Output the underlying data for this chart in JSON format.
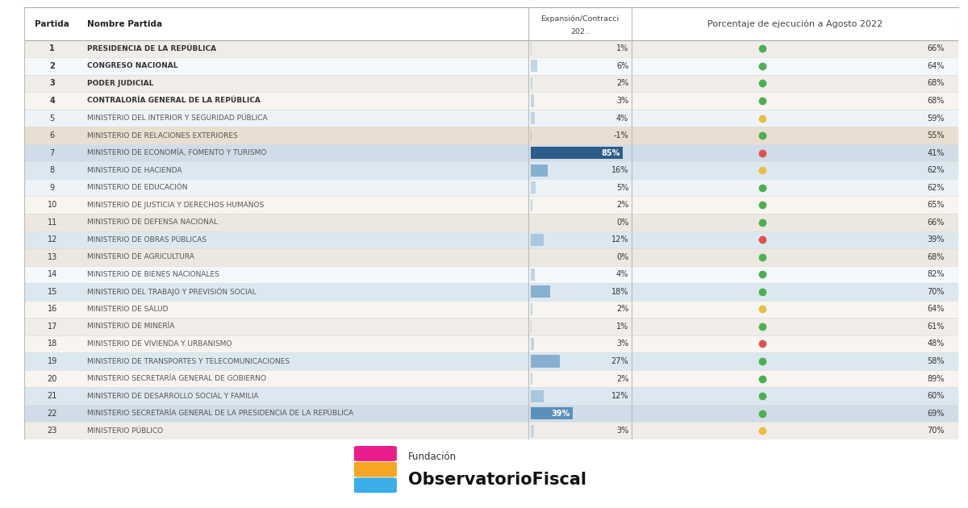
{
  "rows": [
    {
      "id": 1,
      "name": "PRESIDENCIA DE LA REPÚBLICA",
      "expansion": 1,
      "exec_pct": 66,
      "dot_color": "green"
    },
    {
      "id": 2,
      "name": "CONGRESO NACIONAL",
      "expansion": 6,
      "exec_pct": 64,
      "dot_color": "green"
    },
    {
      "id": 3,
      "name": "PODER JUDICIAL",
      "expansion": 2,
      "exec_pct": 68,
      "dot_color": "green"
    },
    {
      "id": 4,
      "name": "CONTRALORÍA GENERAL DE LA REPÚBLICA",
      "expansion": 3,
      "exec_pct": 68,
      "dot_color": "green"
    },
    {
      "id": 5,
      "name": "MINISTERIO DEL INTERIOR Y SEGURIDAD PÚBLICA",
      "expansion": 4,
      "exec_pct": 59,
      "dot_color": "yellow"
    },
    {
      "id": 6,
      "name": "MINISTERIO DE RELACIONES EXTERIORES",
      "expansion": -1,
      "exec_pct": 55,
      "dot_color": "green"
    },
    {
      "id": 7,
      "name": "MINISTERIO DE ECONOMÍA, FOMENTO Y TURISMO",
      "expansion": 85,
      "exec_pct": 41,
      "dot_color": "red"
    },
    {
      "id": 8,
      "name": "MINISTERIO DE HACIENDA",
      "expansion": 16,
      "exec_pct": 62,
      "dot_color": "yellow"
    },
    {
      "id": 9,
      "name": "MINISTERIO DE EDUCACIÓN",
      "expansion": 5,
      "exec_pct": 62,
      "dot_color": "green"
    },
    {
      "id": 10,
      "name": "MINISTERIO DE JUSTICIA Y DERECHOS HUMANOS",
      "expansion": 2,
      "exec_pct": 65,
      "dot_color": "green"
    },
    {
      "id": 11,
      "name": "MINISTERIO DE DEFENSA NACIONAL",
      "expansion": 0,
      "exec_pct": 66,
      "dot_color": "green"
    },
    {
      "id": 12,
      "name": "MINISTERIO DE OBRAS PÚBLICAS",
      "expansion": 12,
      "exec_pct": 39,
      "dot_color": "red"
    },
    {
      "id": 13,
      "name": "MINISTERIO DE AGRICULTURA",
      "expansion": 0,
      "exec_pct": 68,
      "dot_color": "green"
    },
    {
      "id": 14,
      "name": "MINISTERIO DE BIENES NACIONALES",
      "expansion": 4,
      "exec_pct": 82,
      "dot_color": "green"
    },
    {
      "id": 15,
      "name": "MINISTERIO DEL TRABAJO Y PREVISIÓN SOCIAL",
      "expansion": 18,
      "exec_pct": 70,
      "dot_color": "green"
    },
    {
      "id": 16,
      "name": "MINISTERIO DE SALUD",
      "expansion": 2,
      "exec_pct": 64,
      "dot_color": "yellow"
    },
    {
      "id": 17,
      "name": "MINISTERIO DE MINERÍA",
      "expansion": 1,
      "exec_pct": 61,
      "dot_color": "green"
    },
    {
      "id": 18,
      "name": "MINISTERIO DE VIVIENDA Y URBANISMO",
      "expansion": 3,
      "exec_pct": 48,
      "dot_color": "red"
    },
    {
      "id": 19,
      "name": "MINISTERIO DE TRANSPORTES Y TELECOMUNICACIONES",
      "expansion": 27,
      "exec_pct": 58,
      "dot_color": "green"
    },
    {
      "id": 20,
      "name": "MINISTERIO SECRETARÍA GENERAL DE GOBIERNO",
      "expansion": 2,
      "exec_pct": 89,
      "dot_color": "green"
    },
    {
      "id": 21,
      "name": "MINISTERIO DE DESARROLLO SOCIAL Y FAMILIA",
      "expansion": 12,
      "exec_pct": 60,
      "dot_color": "green"
    },
    {
      "id": 22,
      "name": "MINISTERIO SECRETARÍA GENERAL DE LA PRESIDENCIA DE LA REPÚBLICA",
      "expansion": 39,
      "exec_pct": 69,
      "dot_color": "green"
    },
    {
      "id": 23,
      "name": "MINISTERIO PÚBLICO",
      "expansion": 3,
      "exec_pct": 70,
      "dot_color": "yellow"
    }
  ],
  "bg_color": "#ffffff",
  "dot_green": "#4caf50",
  "dot_yellow": "#e8c040",
  "dot_red": "#e05050",
  "logo_pink": "#e91e8c",
  "logo_orange": "#f5a623",
  "logo_blue": "#3baee8",
  "header_line_color": "#aaaaaa",
  "row_line_color": "#dddddd",
  "sep_line_color": "#bbbbbb"
}
